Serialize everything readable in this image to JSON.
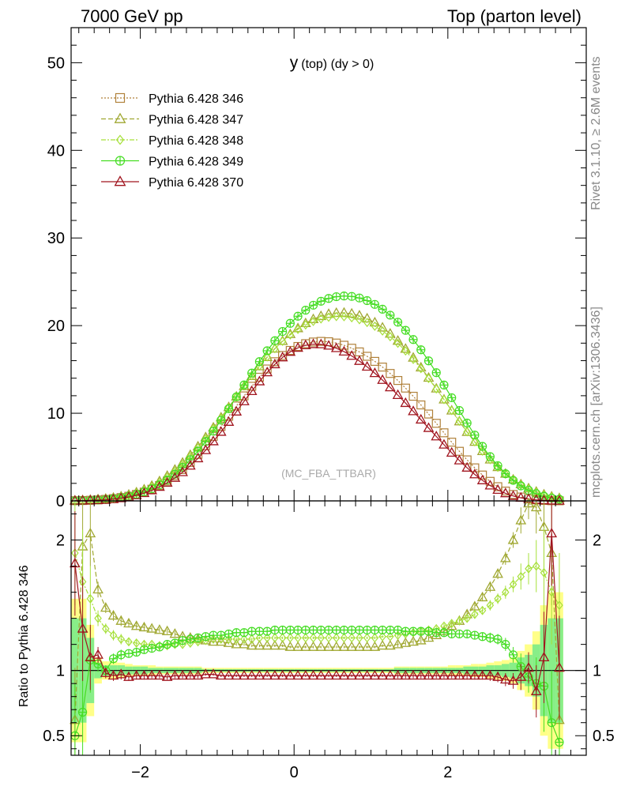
{
  "header": {
    "left": "7000 GeV pp",
    "right": "Top (parton level)"
  },
  "side": {
    "rivet": "Rivet 3.1.10, ≥ 2.6M events",
    "mcplots": "mcplots.cern.ch [arXiv:1306.3436]"
  },
  "chart_data": {
    "type": "line",
    "title": "y (top) (dy > 0)",
    "title_main": "y",
    "title_sub": "(top) (dy > 0)",
    "watermark": "(MC_FBA_TTBAR)",
    "x": [
      -2.85,
      -2.75,
      -2.65,
      -2.55,
      -2.45,
      -2.35,
      -2.25,
      -2.15,
      -2.05,
      -1.95,
      -1.85,
      -1.75,
      -1.65,
      -1.55,
      -1.45,
      -1.35,
      -1.25,
      -1.15,
      -1.05,
      -0.95,
      -0.85,
      -0.75,
      -0.65,
      -0.55,
      -0.45,
      -0.35,
      -0.25,
      -0.15,
      -0.05,
      0.05,
      0.15,
      0.25,
      0.35,
      0.45,
      0.55,
      0.65,
      0.75,
      0.85,
      0.95,
      1.05,
      1.15,
      1.25,
      1.35,
      1.45,
      1.55,
      1.65,
      1.75,
      1.85,
      1.95,
      2.05,
      2.15,
      2.25,
      2.35,
      2.45,
      2.55,
      2.65,
      2.75,
      2.85,
      2.95,
      3.05,
      3.15,
      3.25,
      3.35,
      3.45
    ],
    "xlim": [
      -2.9,
      3.8
    ],
    "ylim": [
      0,
      54
    ],
    "yticks": [
      0,
      10,
      20,
      30,
      40,
      50
    ],
    "ratio": {
      "ylabel": "Ratio to Pythia 6.428 346",
      "ylim": [
        0.35,
        2.3
      ],
      "yticks": [
        0.5,
        1,
        2
      ],
      "xticks": [
        -2,
        0,
        2
      ],
      "yellow_band": [
        0.55,
        0.55,
        0.35,
        0.1,
        0.07,
        0.07,
        0.06,
        0.05,
        0.04,
        0.04,
        0.04,
        0.03,
        0.03,
        0.03,
        0.03,
        0.03,
        0.03,
        0.02,
        0.02,
        0.02,
        0.02,
        0.02,
        0.02,
        0.02,
        0.02,
        0.02,
        0.02,
        0.02,
        0.02,
        0.02,
        0.02,
        0.02,
        0.02,
        0.02,
        0.02,
        0.02,
        0.02,
        0.02,
        0.02,
        0.02,
        0.02,
        0.02,
        0.03,
        0.03,
        0.03,
        0.03,
        0.03,
        0.03,
        0.03,
        0.04,
        0.04,
        0.04,
        0.05,
        0.05,
        0.06,
        0.07,
        0.08,
        0.1,
        0.15,
        0.2,
        0.3,
        0.5,
        0.6,
        0.6
      ],
      "green_band": [
        0.4,
        0.4,
        0.25,
        0.06,
        0.04,
        0.04,
        0.04,
        0.03,
        0.03,
        0.03,
        0.02,
        0.02,
        0.02,
        0.02,
        0.02,
        0.02,
        0.02,
        0.01,
        0.01,
        0.01,
        0.01,
        0.01,
        0.01,
        0.01,
        0.01,
        0.01,
        0.01,
        0.01,
        0.01,
        0.01,
        0.01,
        0.01,
        0.01,
        0.01,
        0.01,
        0.01,
        0.01,
        0.01,
        0.01,
        0.01,
        0.01,
        0.01,
        0.02,
        0.02,
        0.02,
        0.02,
        0.02,
        0.02,
        0.02,
        0.02,
        0.02,
        0.03,
        0.03,
        0.03,
        0.04,
        0.04,
        0.05,
        0.06,
        0.1,
        0.12,
        0.2,
        0.35,
        0.4,
        0.4
      ]
    },
    "series": [
      {
        "name": "Pythia 6.428 346",
        "color": "#b0813a",
        "marker": "square",
        "dash": "2,2",
        "values": [
          0.02,
          0.04,
          0.07,
          0.11,
          0.17,
          0.26,
          0.38,
          0.53,
          0.74,
          1.0,
          1.33,
          1.75,
          2.26,
          2.87,
          3.58,
          4.39,
          5.3,
          6.3,
          7.37,
          8.5,
          9.66,
          10.83,
          11.98,
          13.08,
          14.11,
          15.05,
          15.88,
          16.59,
          17.17,
          17.62,
          17.94,
          18.13,
          18.2,
          18.16,
          18.01,
          17.76,
          17.42,
          17.0,
          16.5,
          15.92,
          15.27,
          14.54,
          13.74,
          12.87,
          11.94,
          10.95,
          9.91,
          8.85,
          7.77,
          6.7,
          5.66,
          4.68,
          3.77,
          2.95,
          2.23,
          1.62,
          1.12,
          0.73,
          0.44,
          0.24,
          0.11,
          0.05,
          0.02,
          0.01
        ],
        "ratio": [
          1.0,
          1.0,
          1.0,
          1.0,
          1.0,
          1.0,
          1.0,
          1.0,
          1.0,
          1.0,
          1.0,
          1.0,
          1.0,
          1.0,
          1.0,
          1.0,
          1.0,
          1.0,
          1.0,
          1.0,
          1.0,
          1.0,
          1.0,
          1.0,
          1.0,
          1.0,
          1.0,
          1.0,
          1.0,
          1.0,
          1.0,
          1.0,
          1.0,
          1.0,
          1.0,
          1.0,
          1.0,
          1.0,
          1.0,
          1.0,
          1.0,
          1.0,
          1.0,
          1.0,
          1.0,
          1.0,
          1.0,
          1.0,
          1.0,
          1.0,
          1.0,
          1.0,
          1.0,
          1.0,
          1.0,
          1.0,
          1.0,
          1.0,
          1.0,
          1.0,
          1.0,
          1.0,
          1.0,
          1.0
        ]
      },
      {
        "name": "Pythia 6.428 347",
        "color": "#a0a832",
        "marker": "triangle",
        "dash": "6,3",
        "values": [
          0.04,
          0.07,
          0.12,
          0.17,
          0.24,
          0.35,
          0.5,
          0.7,
          0.96,
          1.3,
          1.72,
          2.24,
          2.85,
          3.55,
          4.35,
          5.23,
          6.2,
          7.25,
          8.36,
          9.51,
          10.69,
          11.89,
          13.08,
          14.24,
          15.35,
          16.4,
          17.37,
          18.24,
          19.02,
          19.69,
          20.27,
          20.73,
          21.08,
          21.32,
          21.44,
          21.46,
          21.36,
          21.14,
          20.81,
          20.35,
          19.77,
          19.07,
          18.26,
          17.35,
          16.33,
          15.22,
          14.04,
          12.81,
          11.56,
          10.3,
          9.06,
          7.86,
          6.73,
          5.67,
          4.71,
          3.85,
          3.09,
          2.43,
          1.88,
          1.42,
          1.04,
          0.73,
          0.49,
          0.31
        ],
        "ratio": [
          0.62,
          1.95,
          2.05,
          1.62,
          1.48,
          1.42,
          1.38,
          1.36,
          1.34,
          1.33,
          1.32,
          1.31,
          1.3,
          1.28,
          1.26,
          1.25,
          1.24,
          1.23,
          1.22,
          1.22,
          1.21,
          1.2,
          1.2,
          1.19,
          1.19,
          1.19,
          1.19,
          1.19,
          1.18,
          1.18,
          1.18,
          1.18,
          1.18,
          1.18,
          1.18,
          1.18,
          1.18,
          1.18,
          1.18,
          1.18,
          1.19,
          1.19,
          1.2,
          1.21,
          1.22,
          1.23,
          1.25,
          1.27,
          1.3,
          1.34,
          1.38,
          1.43,
          1.49,
          1.56,
          1.64,
          1.74,
          1.86,
          2.0,
          2.15,
          2.28,
          2.25,
          2.1,
          1.9,
          0.62
        ]
      },
      {
        "name": "Pythia 6.428 348",
        "color": "#a6e03a",
        "marker": "diamond",
        "dash": "6,2,2,2",
        "values": [
          0.03,
          0.06,
          0.1,
          0.15,
          0.22,
          0.32,
          0.46,
          0.64,
          0.89,
          1.2,
          1.6,
          2.09,
          2.68,
          3.37,
          4.16,
          5.05,
          6.03,
          7.09,
          8.23,
          9.42,
          10.64,
          11.88,
          13.1,
          14.28,
          15.39,
          16.43,
          17.37,
          18.21,
          18.94,
          19.57,
          20.08,
          20.48,
          20.77,
          20.96,
          21.04,
          21.02,
          20.9,
          20.68,
          20.36,
          19.93,
          19.39,
          18.74,
          17.98,
          17.11,
          16.15,
          15.1,
          13.97,
          12.78,
          11.56,
          10.32,
          9.09,
          7.89,
          6.75,
          5.68,
          4.71,
          3.83,
          3.06,
          2.39,
          1.83,
          1.37,
          0.99,
          0.69,
          0.46,
          0.28
        ],
        "ratio": [
          1.9,
          1.68,
          1.55,
          1.4,
          1.32,
          1.27,
          1.24,
          1.22,
          1.21,
          1.2,
          1.2,
          1.19,
          1.19,
          1.2,
          1.2,
          1.21,
          1.22,
          1.23,
          1.24,
          1.24,
          1.24,
          1.24,
          1.24,
          1.24,
          1.25,
          1.25,
          1.25,
          1.25,
          1.25,
          1.25,
          1.25,
          1.25,
          1.25,
          1.25,
          1.25,
          1.25,
          1.25,
          1.25,
          1.25,
          1.25,
          1.26,
          1.26,
          1.27,
          1.28,
          1.29,
          1.3,
          1.31,
          1.32,
          1.34,
          1.36,
          1.38,
          1.4,
          1.43,
          1.46,
          1.5,
          1.55,
          1.6,
          1.66,
          1.72,
          1.78,
          1.8,
          1.75,
          1.6,
          1.5
        ]
      },
      {
        "name": "Pythia 6.428 349",
        "color": "#44dd22",
        "marker": "circleplus",
        "dash": "",
        "values": [
          0.01,
          0.03,
          0.06,
          0.1,
          0.16,
          0.25,
          0.37,
          0.53,
          0.75,
          1.03,
          1.39,
          1.84,
          2.39,
          3.05,
          3.82,
          4.7,
          5.69,
          6.78,
          7.96,
          9.21,
          10.52,
          11.87,
          13.23,
          14.58,
          15.89,
          17.13,
          18.28,
          19.33,
          20.26,
          21.07,
          21.76,
          22.33,
          22.78,
          23.1,
          23.3,
          23.38,
          23.33,
          23.15,
          22.85,
          22.42,
          21.87,
          21.19,
          20.39,
          19.46,
          18.41,
          17.24,
          15.98,
          14.63,
          13.22,
          11.77,
          10.31,
          8.88,
          7.51,
          6.22,
          5.05,
          4.01,
          3.1,
          2.34,
          1.71,
          1.21,
          0.82,
          0.53,
          0.32,
          0.18
        ],
        "ratio": [
          0.5,
          0.68,
          1.08,
          1.05,
          1.0,
          1.09,
          1.12,
          1.13,
          1.14,
          1.16,
          1.17,
          1.18,
          1.2,
          1.21,
          1.23,
          1.24,
          1.25,
          1.26,
          1.27,
          1.27,
          1.28,
          1.29,
          1.29,
          1.3,
          1.3,
          1.3,
          1.31,
          1.31,
          1.31,
          1.31,
          1.31,
          1.31,
          1.31,
          1.31,
          1.31,
          1.31,
          1.31,
          1.31,
          1.31,
          1.31,
          1.31,
          1.31,
          1.31,
          1.3,
          1.3,
          1.3,
          1.3,
          1.29,
          1.29,
          1.28,
          1.28,
          1.28,
          1.27,
          1.26,
          1.25,
          1.24,
          1.2,
          1.12,
          1.03,
          0.95,
          0.9,
          0.88,
          0.6,
          0.45
        ]
      },
      {
        "name": "Pythia 6.428 370",
        "color": "#a0141e",
        "marker": "triangle",
        "dash": "",
        "values": [
          0.02,
          0.03,
          0.05,
          0.08,
          0.12,
          0.19,
          0.3,
          0.44,
          0.63,
          0.88,
          1.2,
          1.59,
          2.06,
          2.62,
          3.27,
          4.01,
          4.85,
          5.78,
          6.79,
          7.87,
          9.01,
          10.18,
          11.36,
          12.52,
          13.63,
          14.66,
          15.58,
          16.37,
          17.0,
          17.46,
          17.75,
          17.88,
          17.86,
          17.7,
          17.42,
          17.03,
          16.54,
          15.96,
          15.3,
          14.57,
          13.79,
          12.95,
          12.07,
          11.16,
          10.22,
          9.27,
          8.31,
          7.35,
          6.41,
          5.49,
          4.61,
          3.78,
          3.02,
          2.34,
          1.75,
          1.25,
          0.86,
          0.56,
          0.35,
          0.21,
          0.12,
          0.06,
          0.03,
          0.01
        ],
        "ratio": [
          1.82,
          1.32,
          1.1,
          1.12,
          0.98,
          0.96,
          0.97,
          0.95,
          0.96,
          0.96,
          0.96,
          0.96,
          0.95,
          0.96,
          0.96,
          0.96,
          0.96,
          0.97,
          0.97,
          0.96,
          0.96,
          0.96,
          0.96,
          0.96,
          0.96,
          0.96,
          0.96,
          0.96,
          0.96,
          0.96,
          0.96,
          0.96,
          0.96,
          0.96,
          0.96,
          0.96,
          0.96,
          0.96,
          0.96,
          0.96,
          0.96,
          0.96,
          0.96,
          0.96,
          0.96,
          0.96,
          0.96,
          0.96,
          0.96,
          0.96,
          0.96,
          0.96,
          0.96,
          0.96,
          0.96,
          0.95,
          0.93,
          0.92,
          0.95,
          1.02,
          0.84,
          1.1,
          2.05,
          1.02
        ]
      }
    ]
  }
}
